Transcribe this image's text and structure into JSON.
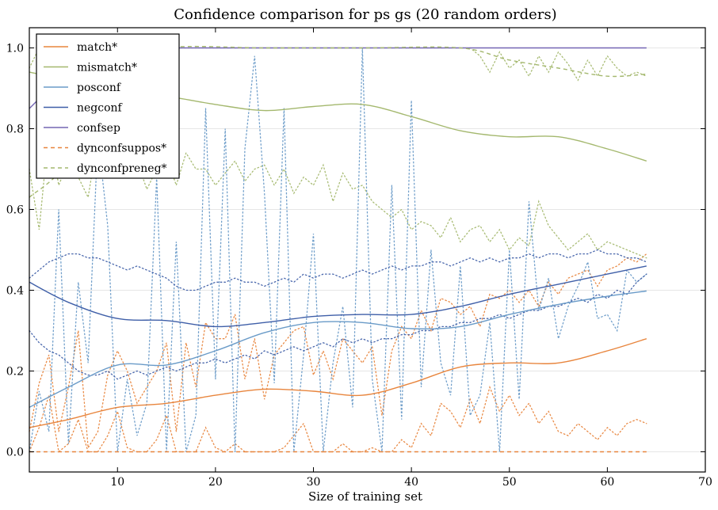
{
  "chart_data": {
    "type": "line",
    "title": "Confidence comparison for ps gs (20 random orders)",
    "xlabel": "Size of training set",
    "ylabel": "",
    "xlim": [
      1,
      70
    ],
    "ylim": [
      -0.05,
      1.05
    ],
    "xticks": [
      10,
      20,
      30,
      40,
      50,
      60,
      70
    ],
    "yticks": [
      0.0,
      0.2,
      0.4,
      0.6,
      0.8,
      1.0
    ],
    "xtick_labels": [
      "10",
      "20",
      "30",
      "40",
      "50",
      "60",
      "70"
    ],
    "ytick_labels": [
      "0.0",
      "0.2",
      "0.4",
      "0.6",
      "0.8",
      "1.0"
    ],
    "grid": "horizontal",
    "legend_position": "top-left",
    "series": [
      {
        "name": "match*",
        "color": "#E8853D",
        "style": "solid",
        "points": [
          [
            1,
            0.06
          ],
          [
            5,
            0.08
          ],
          [
            10,
            0.11
          ],
          [
            15,
            0.12
          ],
          [
            20,
            0.14
          ],
          [
            25,
            0.155
          ],
          [
            30,
            0.15
          ],
          [
            35,
            0.14
          ],
          [
            40,
            0.17
          ],
          [
            45,
            0.21
          ],
          [
            50,
            0.22
          ],
          [
            55,
            0.22
          ],
          [
            60,
            0.25
          ],
          [
            64,
            0.28
          ]
        ]
      },
      {
        "name": "mismatch*",
        "color": "#A4B86E",
        "style": "solid",
        "points": [
          [
            1,
            0.94
          ],
          [
            5,
            0.92
          ],
          [
            10,
            0.89
          ],
          [
            15,
            0.88
          ],
          [
            20,
            0.86
          ],
          [
            25,
            0.845
          ],
          [
            30,
            0.855
          ],
          [
            35,
            0.86
          ],
          [
            40,
            0.83
          ],
          [
            45,
            0.795
          ],
          [
            50,
            0.78
          ],
          [
            55,
            0.78
          ],
          [
            60,
            0.75
          ],
          [
            64,
            0.72
          ]
        ]
      },
      {
        "name": "posconf",
        "color": "#6A9BC8",
        "style": "solid",
        "points": [
          [
            1,
            0.11
          ],
          [
            5,
            0.16
          ],
          [
            10,
            0.215
          ],
          [
            15,
            0.215
          ],
          [
            20,
            0.25
          ],
          [
            25,
            0.295
          ],
          [
            30,
            0.32
          ],
          [
            35,
            0.32
          ],
          [
            40,
            0.305
          ],
          [
            45,
            0.31
          ],
          [
            50,
            0.34
          ],
          [
            55,
            0.365
          ],
          [
            60,
            0.385
          ],
          [
            64,
            0.398
          ]
        ]
      },
      {
        "name": "negconf",
        "color": "#3F5FA8",
        "style": "solid",
        "points": [
          [
            1,
            0.42
          ],
          [
            5,
            0.37
          ],
          [
            10,
            0.33
          ],
          [
            15,
            0.325
          ],
          [
            20,
            0.31
          ],
          [
            25,
            0.32
          ],
          [
            30,
            0.335
          ],
          [
            35,
            0.34
          ],
          [
            40,
            0.34
          ],
          [
            45,
            0.36
          ],
          [
            50,
            0.39
          ],
          [
            55,
            0.415
          ],
          [
            60,
            0.44
          ],
          [
            64,
            0.46
          ]
        ]
      },
      {
        "name": "confsep",
        "color": "#7466B3",
        "style": "solid",
        "points": [
          [
            1,
            0.85
          ],
          [
            4,
            0.92
          ],
          [
            7,
            0.97
          ],
          [
            10,
            1.0
          ],
          [
            15,
            1.0
          ],
          [
            30,
            1.0
          ],
          [
            45,
            1.0
          ],
          [
            64,
            1.0
          ]
        ]
      },
      {
        "name": "dynconfsuppos*",
        "color": "#E8853D",
        "style": "dashed",
        "points": [
          [
            1,
            0.0
          ],
          [
            20,
            0.0
          ],
          [
            40,
            0.0
          ],
          [
            64,
            0.0
          ]
        ]
      },
      {
        "name": "dynconfpreneg*",
        "color": "#A4B86E",
        "style": "dashed",
        "points": [
          [
            1,
            0.63
          ],
          [
            5,
            0.72
          ],
          [
            10,
            0.95
          ],
          [
            15,
            1.0
          ],
          [
            25,
            1.0
          ],
          [
            35,
            1.0
          ],
          [
            45,
            1.0
          ],
          [
            50,
            0.97
          ],
          [
            55,
            0.95
          ],
          [
            60,
            0.93
          ],
          [
            64,
            0.935
          ]
        ]
      }
    ],
    "bands": [
      {
        "color": "#E8853D",
        "values": [
          0.05,
          0.17,
          0.24,
          0.05,
          0.16,
          0.3,
          0.01,
          0.05,
          0.19,
          0.25,
          0.2,
          0.12,
          0.16,
          0.2,
          0.27,
          0.05,
          0.27,
          0.16,
          0.32,
          0.28,
          0.28,
          0.34,
          0.18,
          0.28,
          0.13,
          0.24,
          0.27,
          0.3,
          0.31,
          0.19,
          0.25,
          0.18,
          0.28,
          0.25,
          0.22,
          0.26,
          0.09,
          0.25,
          0.31,
          0.28,
          0.35,
          0.3,
          0.38,
          0.37,
          0.34,
          0.36,
          0.31,
          0.39,
          0.38,
          0.4,
          0.37,
          0.4,
          0.36,
          0.42,
          0.39,
          0.43,
          0.44,
          0.45,
          0.41,
          0.45,
          0.46,
          0.48,
          0.47,
          0.49
        ]
      },
      {
        "color": "#E8853D",
        "values": [
          0.0,
          0.06,
          0.14,
          0.0,
          0.02,
          0.08,
          0.0,
          0.0,
          0.04,
          0.1,
          0.01,
          0.0,
          0.0,
          0.03,
          0.09,
          0.0,
          0.0,
          0.0,
          0.06,
          0.01,
          0.0,
          0.02,
          0.0,
          0.0,
          0.0,
          0.0,
          0.01,
          0.04,
          0.07,
          0.0,
          0.0,
          0.0,
          0.02,
          0.0,
          0.0,
          0.01,
          0.0,
          0.0,
          0.03,
          0.01,
          0.07,
          0.04,
          0.12,
          0.1,
          0.06,
          0.13,
          0.07,
          0.16,
          0.1,
          0.14,
          0.09,
          0.12,
          0.07,
          0.1,
          0.05,
          0.04,
          0.07,
          0.05,
          0.03,
          0.06,
          0.04,
          0.07,
          0.08,
          0.07
        ]
      },
      {
        "color": "#A4B86E",
        "values": [
          0.7,
          0.55,
          0.8,
          0.66,
          0.72,
          0.68,
          0.63,
          0.78,
          0.7,
          0.75,
          0.68,
          0.72,
          0.65,
          0.7,
          0.73,
          0.66,
          0.74,
          0.7,
          0.7,
          0.66,
          0.69,
          0.72,
          0.67,
          0.7,
          0.71,
          0.66,
          0.7,
          0.64,
          0.68,
          0.66,
          0.71,
          0.62,
          0.69,
          0.65,
          0.66,
          0.62,
          0.6,
          0.58,
          0.6,
          0.55,
          0.57,
          0.56,
          0.53,
          0.58,
          0.52,
          0.55,
          0.56,
          0.52,
          0.55,
          0.5,
          0.53,
          0.51,
          0.62,
          0.56,
          0.53,
          0.5,
          0.52,
          0.54,
          0.5,
          0.52,
          0.51,
          0.5,
          0.49,
          0.48
        ]
      },
      {
        "color": "#A4B86E",
        "values": [
          0.95,
          1.0,
          1.0,
          1.0,
          1.0,
          1.0,
          1.0,
          1.0,
          1.0,
          1.0,
          1.0,
          1.0,
          1.0,
          1.0,
          1.0,
          1.0,
          1.0,
          1.0,
          1.0,
          1.0,
          1.0,
          1.0,
          1.0,
          1.0,
          1.0,
          1.0,
          1.0,
          1.0,
          1.0,
          1.0,
          1.0,
          1.0,
          1.0,
          1.0,
          1.0,
          1.0,
          1.0,
          1.0,
          1.0,
          1.0,
          1.0,
          1.0,
          1.0,
          1.0,
          1.0,
          1.0,
          0.98,
          0.94,
          0.99,
          0.95,
          0.97,
          0.93,
          0.98,
          0.94,
          0.99,
          0.96,
          0.92,
          0.97,
          0.93,
          0.98,
          0.95,
          0.93,
          0.94,
          0.93
        ]
      },
      {
        "color": "#6A9BC8",
        "values": [
          0.0,
          0.15,
          0.05,
          0.6,
          0.02,
          0.42,
          0.22,
          0.78,
          0.56,
          0.0,
          0.18,
          0.04,
          0.12,
          0.68,
          0.0,
          0.52,
          0.0,
          0.09,
          0.85,
          0.18,
          0.8,
          0.0,
          0.75,
          0.98,
          0.64,
          0.17,
          0.85,
          0.0,
          0.24,
          0.54,
          0.0,
          0.22,
          0.36,
          0.11,
          1.0,
          0.18,
          0.0,
          0.66,
          0.08,
          0.87,
          0.16,
          0.5,
          0.22,
          0.14,
          0.46,
          0.09,
          0.14,
          0.32,
          0.0,
          0.5,
          0.13,
          0.62,
          0.35,
          0.43,
          0.28,
          0.36,
          0.41,
          0.47,
          0.33,
          0.34,
          0.3,
          0.45,
          0.42,
          0.44
        ]
      },
      {
        "color": "#3F5FA8",
        "values": [
          0.3,
          0.27,
          0.25,
          0.24,
          0.22,
          0.2,
          0.19,
          0.19,
          0.2,
          0.18,
          0.19,
          0.2,
          0.19,
          0.2,
          0.21,
          0.2,
          0.21,
          0.22,
          0.22,
          0.23,
          0.22,
          0.23,
          0.24,
          0.23,
          0.25,
          0.24,
          0.25,
          0.26,
          0.25,
          0.26,
          0.27,
          0.26,
          0.28,
          0.27,
          0.28,
          0.27,
          0.28,
          0.28,
          0.29,
          0.29,
          0.3,
          0.3,
          0.31,
          0.31,
          0.32,
          0.32,
          0.33,
          0.33,
          0.34,
          0.33,
          0.34,
          0.35,
          0.35,
          0.36,
          0.36,
          0.37,
          0.38,
          0.37,
          0.39,
          0.38,
          0.4,
          0.39,
          0.42,
          0.44
        ]
      },
      {
        "color": "#3F5FA8",
        "values": [
          0.43,
          0.45,
          0.47,
          0.48,
          0.49,
          0.49,
          0.48,
          0.48,
          0.47,
          0.46,
          0.45,
          0.46,
          0.45,
          0.44,
          0.43,
          0.41,
          0.4,
          0.4,
          0.41,
          0.42,
          0.42,
          0.43,
          0.42,
          0.42,
          0.41,
          0.42,
          0.43,
          0.42,
          0.44,
          0.43,
          0.44,
          0.44,
          0.43,
          0.44,
          0.45,
          0.44,
          0.45,
          0.46,
          0.45,
          0.46,
          0.46,
          0.47,
          0.47,
          0.46,
          0.47,
          0.48,
          0.47,
          0.48,
          0.47,
          0.48,
          0.48,
          0.49,
          0.48,
          0.49,
          0.49,
          0.48,
          0.49,
          0.49,
          0.5,
          0.49,
          0.49,
          0.48,
          0.48,
          0.47
        ]
      }
    ]
  }
}
